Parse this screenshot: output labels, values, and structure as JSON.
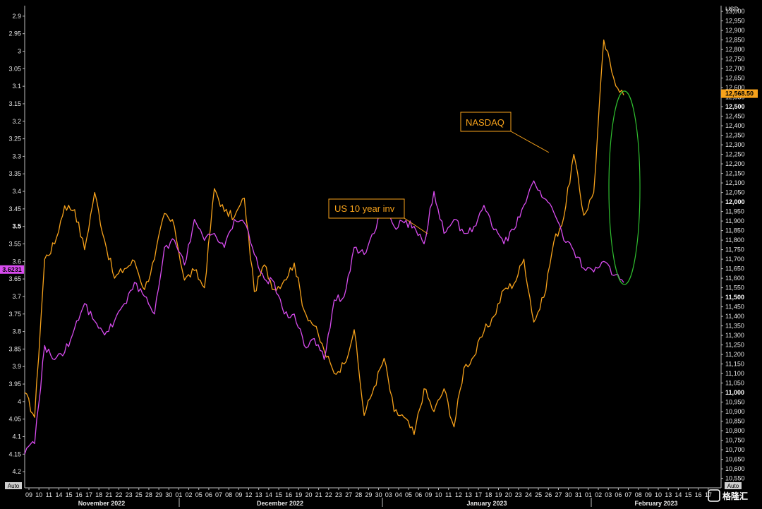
{
  "chart_data": {
    "type": "line",
    "left_axis": {
      "series": "US 10 year inv",
      "inverted": true,
      "ylim": [
        2.87,
        4.23
      ],
      "ticks": [
        2.9,
        2.95,
        3,
        3.05,
        3.1,
        3.15,
        3.2,
        3.25,
        3.3,
        3.35,
        3.4,
        3.45,
        3.5,
        3.55,
        3.6,
        3.65,
        3.7,
        3.75,
        3.8,
        3.85,
        3.9,
        3.95,
        4,
        4.05,
        4.1,
        4.15,
        4.2
      ],
      "tick_labels": [
        "2.9",
        "2.95",
        "3",
        "3.05",
        "3.1",
        "3.15",
        "3.2",
        "3.25",
        "3.3",
        "3.35",
        "3.4",
        "3.45",
        "3.5",
        "3.55",
        "3.6",
        "3.65",
        "3.7",
        "3.75",
        "3.8",
        "3.85",
        "3.9",
        "3.95",
        "4",
        "4.05",
        "4.1",
        "4.15",
        "4.2"
      ],
      "bold_labels": [
        "3.5"
      ],
      "last_value": "3.6231",
      "last_value_num": 3.6231,
      "auto_label": "Auto"
    },
    "right_axis": {
      "unit": "USD",
      "series": "NASDAQ",
      "ylim": [
        10530,
        13030
      ],
      "ticks": [
        10550,
        10600,
        10650,
        10700,
        10750,
        10800,
        10850,
        10900,
        10950,
        11000,
        11050,
        11100,
        11150,
        11200,
        11250,
        11300,
        11350,
        11400,
        11450,
        11500,
        11550,
        11600,
        11650,
        11700,
        11750,
        11800,
        11850,
        11900,
        11950,
        12000,
        12050,
        12100,
        12150,
        12200,
        12250,
        12300,
        12350,
        12400,
        12450,
        12500,
        12550,
        12600,
        12650,
        12700,
        12750,
        12800,
        12850,
        12900,
        12950,
        13000
      ],
      "tick_labels": [
        "10,550",
        "10,600",
        "10,650",
        "10,700",
        "10,750",
        "10,800",
        "10,850",
        "10,900",
        "10,950",
        "11,000",
        "11,050",
        "11,100",
        "11,150",
        "11,200",
        "11,250",
        "11,300",
        "11,350",
        "11,400",
        "11,450",
        "11,500",
        "11,550",
        "11,600",
        "11,650",
        "11,700",
        "11,750",
        "11,800",
        "11,850",
        "11,900",
        "11,950",
        "12,000",
        "12,050",
        "12,100",
        "12,150",
        "12,200",
        "12,250",
        "12,300",
        "12,350",
        "12,400",
        "12,450",
        "12,500",
        "12,550",
        "12,600",
        "12,650",
        "12,700",
        "12,750",
        "12,800",
        "12,850",
        "12,900",
        "12,950",
        "13,000"
      ],
      "bold_labels": [
        "11,000",
        "11,500",
        "12,000",
        "12,500"
      ],
      "last_value": "12,568.50",
      "last_value_num": 12568.5,
      "auto_label": "Auto"
    },
    "x_axis": {
      "tick_labels": [
        "09",
        "10",
        "11",
        "14",
        "15",
        "16",
        "17",
        "18",
        "21",
        "22",
        "23",
        "25",
        "28",
        "29",
        "30",
        "01",
        "02",
        "05",
        "06",
        "07",
        "08",
        "09",
        "12",
        "13",
        "14",
        "15",
        "16",
        "19",
        "20",
        "21",
        "22",
        "23",
        "27",
        "28",
        "29",
        "30",
        "03",
        "04",
        "05",
        "06",
        "09",
        "10",
        "11",
        "12",
        "13",
        "17",
        "18",
        "19",
        "20",
        "23",
        "24",
        "25",
        "26",
        "27",
        "30",
        "31",
        "01",
        "02",
        "03",
        "06",
        "07",
        "08",
        "09",
        "10",
        "13",
        "14",
        "15",
        "16",
        "17"
      ],
      "month_labels": [
        "November 2022",
        "December 2022",
        "January 2023",
        "February 2023"
      ]
    },
    "series": [
      {
        "name": "NASDAQ",
        "color": "#f7a21b",
        "x": [
          0,
          1,
          2,
          3,
          4,
          5,
          6,
          7,
          8,
          9,
          10,
          11,
          12,
          13,
          14,
          15,
          16,
          17,
          18,
          19,
          20,
          21,
          22,
          23,
          24,
          25,
          26,
          27,
          28,
          29,
          30,
          31,
          32,
          33,
          34,
          35,
          36,
          37,
          38,
          39,
          40,
          41,
          42,
          43,
          44,
          45,
          46,
          47,
          48,
          49,
          50,
          51,
          52,
          53,
          54,
          55,
          56,
          57,
          58,
          59,
          60
        ],
        "values": [
          11000,
          10870,
          11700,
          11780,
          11980,
          11960,
          11750,
          12050,
          11800,
          11600,
          11650,
          11690,
          11540,
          11700,
          11940,
          11870,
          11590,
          11640,
          11550,
          12070,
          11950,
          11920,
          12020,
          11530,
          11670,
          11540,
          11590,
          11680,
          11430,
          11350,
          11220,
          11100,
          11150,
          11330,
          10880,
          11030,
          11180,
          10900,
          10870,
          10780,
          11020,
          10900,
          11020,
          10820,
          11130,
          11190,
          11320,
          11400,
          11540,
          11570,
          11700,
          11370,
          11500,
          11790,
          11920,
          12250,
          11930,
          12050,
          12850,
          12650,
          12560
        ]
      },
      {
        "name": "US 10 year inv",
        "color": "#d94cf0",
        "x": [
          0,
          1,
          2,
          3,
          4,
          5,
          6,
          7,
          8,
          9,
          10,
          11,
          12,
          13,
          14,
          15,
          16,
          17,
          18,
          19,
          20,
          21,
          22,
          23,
          24,
          25,
          26,
          27,
          28,
          29,
          30,
          31,
          32,
          33,
          34,
          35,
          36,
          37,
          38,
          39,
          40,
          41,
          42,
          43,
          44,
          45,
          46,
          47,
          48,
          49,
          50,
          51,
          52,
          53,
          54,
          55,
          56,
          57,
          58,
          59,
          60
        ],
        "values": [
          4.15,
          4.12,
          3.84,
          3.88,
          3.86,
          3.79,
          3.72,
          3.77,
          3.81,
          3.77,
          3.72,
          3.66,
          3.7,
          3.75,
          3.56,
          3.54,
          3.61,
          3.48,
          3.54,
          3.52,
          3.56,
          3.48,
          3.49,
          3.58,
          3.65,
          3.66,
          3.75,
          3.75,
          3.84,
          3.82,
          3.88,
          3.71,
          3.7,
          3.56,
          3.58,
          3.52,
          3.44,
          3.5,
          3.49,
          3.5,
          3.55,
          3.4,
          3.52,
          3.48,
          3.52,
          3.5,
          3.44,
          3.51,
          3.55,
          3.51,
          3.44,
          3.37,
          3.42,
          3.46,
          3.54,
          3.57,
          3.62,
          3.63,
          3.6,
          3.64,
          3.66
        ]
      }
    ],
    "annotations": [
      {
        "text": "NASDAQ"
      },
      {
        "text": "US 10 year inv"
      }
    ],
    "highlight": {
      "shape": "ellipse",
      "color": "#2fbf2f"
    }
  },
  "watermark": "格隆汇"
}
